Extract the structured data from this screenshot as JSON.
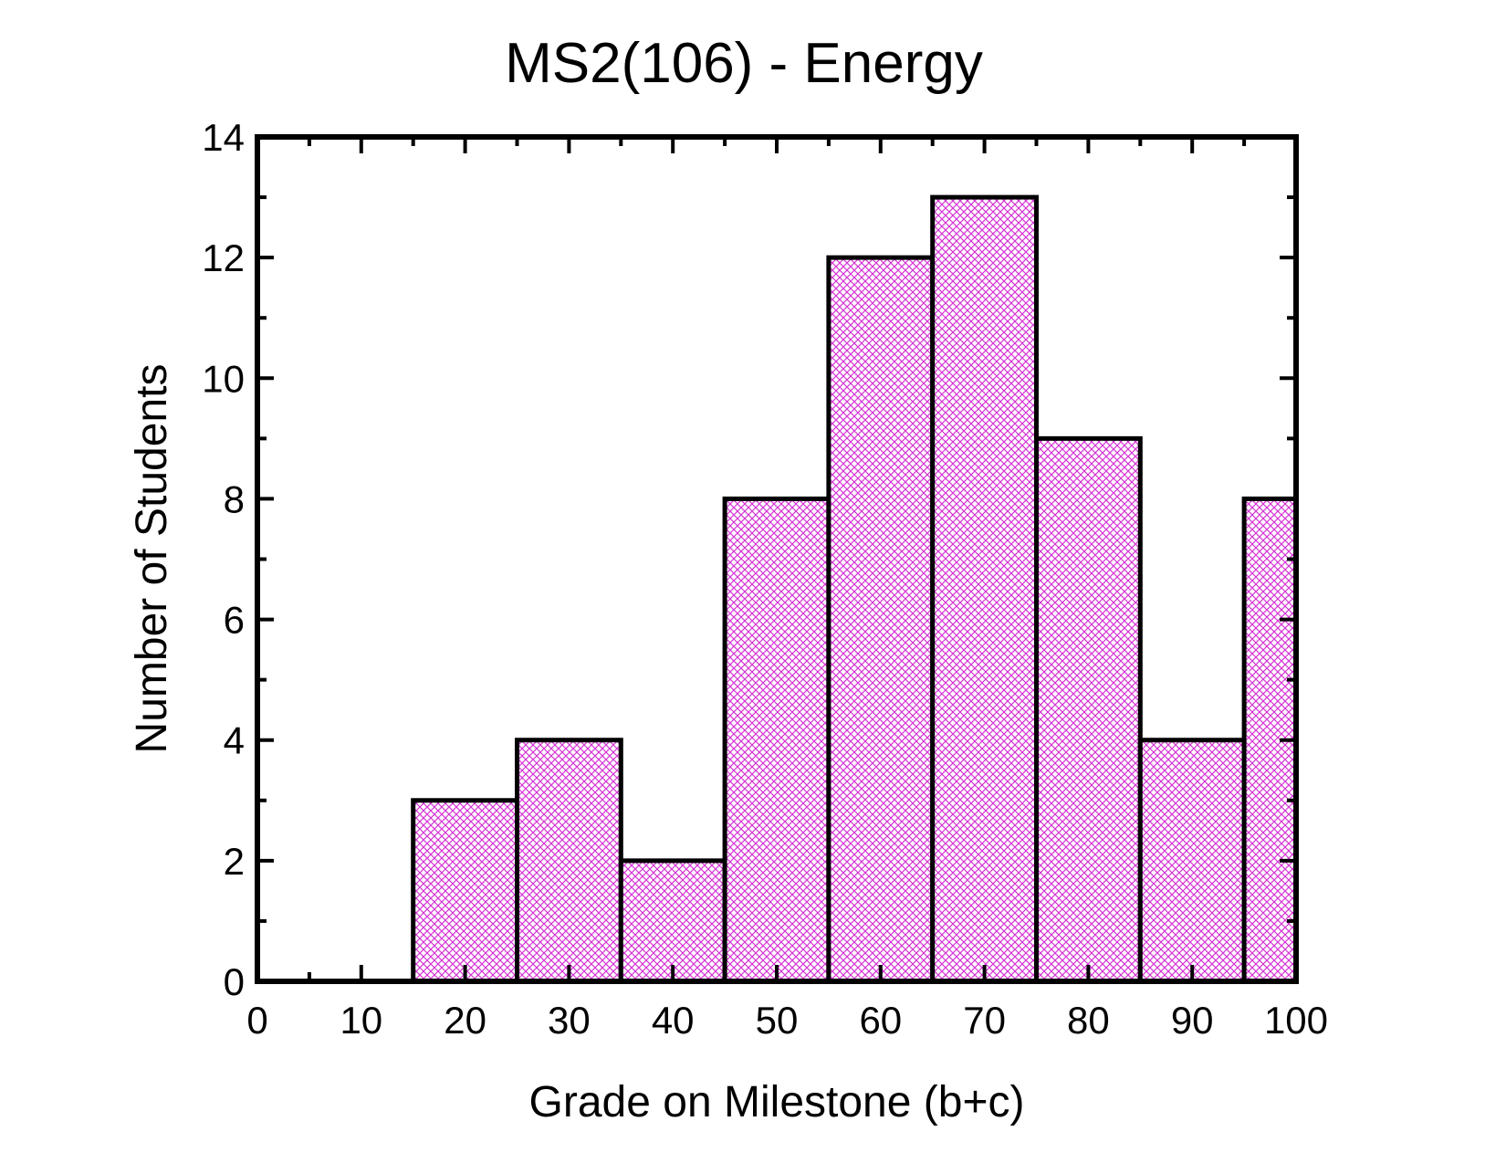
{
  "chart_data": {
    "type": "bar",
    "title": "MS2(106) - Energy",
    "xlabel": "Grade on Milestone (b+c)",
    "ylabel": "Number of Students",
    "xlim": [
      0,
      100
    ],
    "ylim": [
      0,
      14
    ],
    "x_ticks": [
      0,
      10,
      20,
      30,
      40,
      50,
      60,
      70,
      80,
      90,
      100
    ],
    "y_ticks": [
      0,
      2,
      4,
      6,
      8,
      10,
      12,
      14
    ],
    "bin_width": 10,
    "bins": [
      {
        "start": 15,
        "end": 25,
        "value": 3
      },
      {
        "start": 25,
        "end": 35,
        "value": 4
      },
      {
        "start": 35,
        "end": 45,
        "value": 2
      },
      {
        "start": 45,
        "end": 55,
        "value": 8
      },
      {
        "start": 55,
        "end": 65,
        "value": 12
      },
      {
        "start": 65,
        "end": 75,
        "value": 13
      },
      {
        "start": 75,
        "end": 85,
        "value": 9
      },
      {
        "start": 85,
        "end": 95,
        "value": 4
      },
      {
        "start": 95,
        "end": 100,
        "value": 8
      }
    ],
    "bar_color": "#d633d6",
    "bar_pattern": "crosshatch",
    "grid": false,
    "legend": false
  }
}
